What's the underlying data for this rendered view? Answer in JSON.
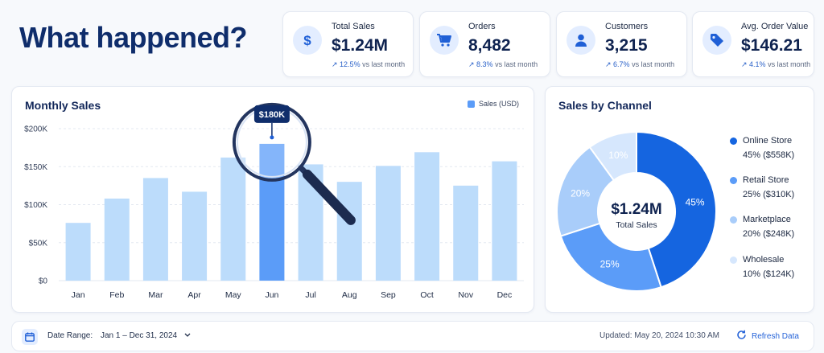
{
  "headline": "What happened?",
  "kpis": [
    {
      "label": "Total Sales",
      "value": "$1.24M",
      "delta": "12.5%",
      "delta_text": "vs last month",
      "icon": "dollar-icon"
    },
    {
      "label": "Orders",
      "value": "8,482",
      "delta": "8.3%",
      "delta_text": "vs last month",
      "icon": "cart-icon"
    },
    {
      "label": "Customers",
      "value": "3,215",
      "delta": "6.7%",
      "delta_text": "vs last month",
      "icon": "user-icon"
    },
    {
      "label": "Avg. Order Value",
      "value": "$146.21",
      "delta": "4.1%",
      "delta_text": "vs last month",
      "icon": "tag-icon"
    }
  ],
  "monthly": {
    "title": "Monthly Sales",
    "legend": "Sales (USD)",
    "callout": "$180K"
  },
  "channel": {
    "title": "Sales by Channel",
    "center_value": "$1.24M",
    "center_label": "Total Sales",
    "items": [
      {
        "name": "Online Store",
        "value": "45%  ($558K)"
      },
      {
        "name": "Retail Store",
        "value": "25%  ($310K)"
      },
      {
        "name": "Marketplace",
        "value": "20%  ($248K)"
      },
      {
        "name": "Wholesale",
        "value": "10%  ($124K)"
      }
    ]
  },
  "footer": {
    "date_label": "Date Range:",
    "date_value": "Jan 1 – Dec 31, 2024",
    "updated": "Updated: May 20, 2024 10:30 AM",
    "refresh": "Refresh Data"
  },
  "colors": {
    "accent": "#2563d8",
    "bar": "#bcdcfb",
    "bar_highlight": "#5b9cf8",
    "online": "#1565e0",
    "retail": "#5b9cf8",
    "marketplace": "#a9cdfa",
    "wholesale": "#d6e7fd"
  },
  "chart_data": [
    {
      "type": "bar",
      "title": "Monthly Sales",
      "categories": [
        "Jan",
        "Feb",
        "Mar",
        "Apr",
        "May",
        "Jun",
        "Jul",
        "Aug",
        "Sep",
        "Oct",
        "Nov",
        "Dec"
      ],
      "series": [
        {
          "name": "Sales (USD)",
          "values": [
            76,
            108,
            135,
            117,
            162,
            180,
            153,
            130,
            151,
            169,
            125,
            157
          ]
        }
      ],
      "ylim": [
        0,
        200
      ],
      "yticks": [
        "$0",
        "$50K",
        "$100K",
        "$150K",
        "$200K"
      ],
      "grid": true,
      "highlight": "Jun",
      "legend": "top-right"
    },
    {
      "type": "pie",
      "title": "Sales by Channel",
      "categories": [
        "Online Store",
        "Retail Store",
        "Marketplace",
        "Wholesale"
      ],
      "values": [
        45,
        25,
        20,
        10
      ],
      "labels": [
        "45%",
        "25%",
        "20%",
        "10%"
      ],
      "donut": true,
      "legend": "right"
    }
  ]
}
